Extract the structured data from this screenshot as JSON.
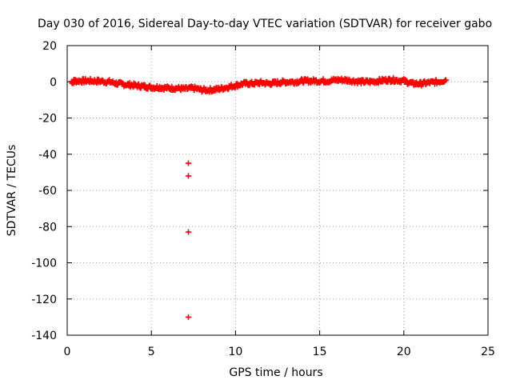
{
  "chart_data": {
    "type": "scatter",
    "title": "Day 030 of 2016, Sidereal Day-to-day VTEC variation (SDTVAR) for receiver gabo",
    "xlabel": "GPS time / hours",
    "ylabel": "SDTVAR / TECUs",
    "xlim": [
      0,
      25
    ],
    "ylim": [
      -140,
      20
    ],
    "xticks": [
      0,
      5,
      10,
      15,
      20,
      25
    ],
    "yticks": [
      20,
      0,
      -20,
      -40,
      -60,
      -80,
      -100,
      -120,
      -140
    ],
    "grid": true,
    "legend": "none",
    "marker": "plus",
    "series": [
      {
        "name": "SDTVAR",
        "color": "#ff0000",
        "trend": [
          [
            0.25,
            0.0
          ],
          [
            0.5,
            0.5
          ],
          [
            1.0,
            0.5
          ],
          [
            1.5,
            0.5
          ],
          [
            2.0,
            0.3
          ],
          [
            2.5,
            0.0
          ],
          [
            3.0,
            -1.0
          ],
          [
            3.5,
            -1.5
          ],
          [
            4.0,
            -2.0
          ],
          [
            4.5,
            -2.5
          ],
          [
            5.0,
            -3.0
          ],
          [
            5.5,
            -3.0
          ],
          [
            6.0,
            -3.5
          ],
          [
            6.5,
            -3.5
          ],
          [
            7.0,
            -4.0
          ],
          [
            7.5,
            -3.5
          ],
          [
            8.0,
            -4.5
          ],
          [
            8.5,
            -4.5
          ],
          [
            9.0,
            -4.0
          ],
          [
            9.5,
            -3.0
          ],
          [
            10.0,
            -2.0
          ],
          [
            10.5,
            -1.0
          ],
          [
            11.0,
            -1.0
          ],
          [
            11.5,
            -0.5
          ],
          [
            12.0,
            -1.0
          ],
          [
            12.5,
            -0.5
          ],
          [
            13.0,
            0.0
          ],
          [
            13.5,
            0.0
          ],
          [
            14.0,
            0.5
          ],
          [
            14.5,
            0.5
          ],
          [
            15.0,
            0.5
          ],
          [
            15.5,
            0.5
          ],
          [
            16.0,
            1.0
          ],
          [
            16.5,
            1.0
          ],
          [
            17.0,
            0.5
          ],
          [
            17.5,
            0.0
          ],
          [
            18.0,
            0.0
          ],
          [
            18.5,
            0.5
          ],
          [
            19.0,
            1.0
          ],
          [
            19.5,
            1.0
          ],
          [
            20.0,
            0.5
          ],
          [
            20.5,
            -1.0
          ],
          [
            21.0,
            -1.0
          ],
          [
            21.5,
            -0.5
          ],
          [
            22.0,
            0.0
          ],
          [
            22.5,
            1.0
          ]
        ],
        "outliers": [
          [
            7.2,
            -45
          ],
          [
            7.2,
            -52
          ],
          [
            7.2,
            -83
          ],
          [
            7.2,
            -130
          ]
        ]
      }
    ]
  }
}
